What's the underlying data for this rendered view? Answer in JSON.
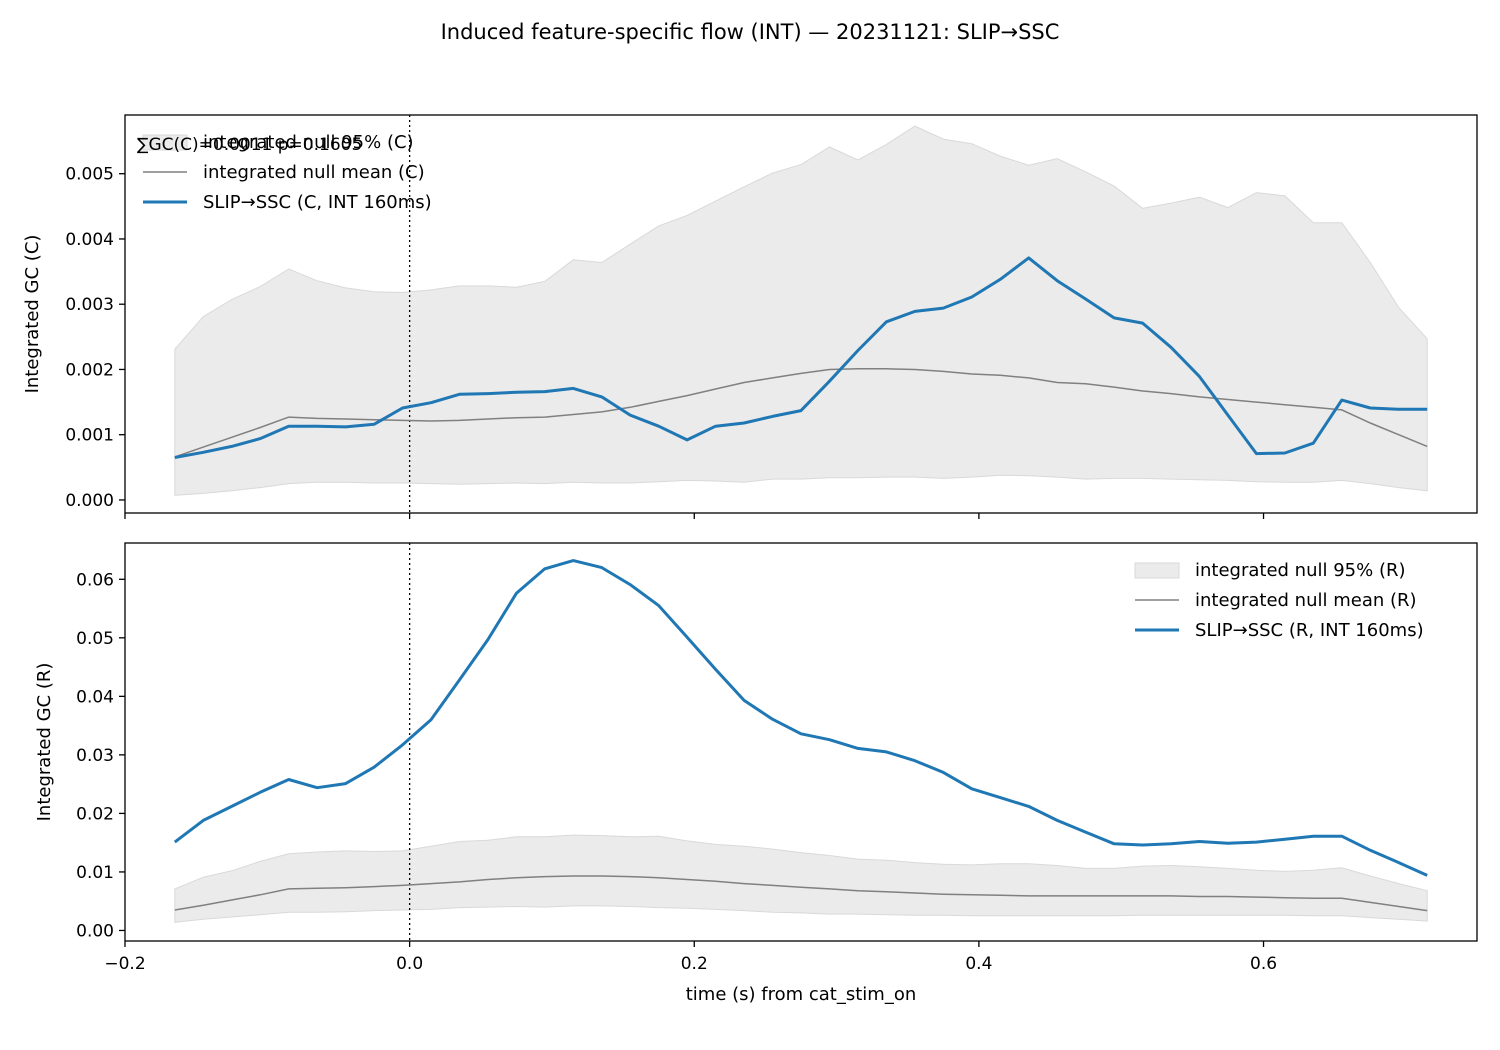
{
  "title": "Induced feature-specific flow (INT) — 20231121: SLIP→SSC",
  "colors": {
    "series": "#1f77b4",
    "null_mean": "#808080",
    "null_band": "#ebebeb",
    "null_band_edge": "#d9d9d9"
  },
  "chart_data": [
    {
      "type": "line",
      "panel": "top",
      "ylabel": "Integrated GC (C)",
      "xlim": [
        -0.2,
        0.75
      ],
      "ylim": [
        -0.0002,
        0.0059
      ],
      "xticks": [
        -0.2,
        0.0,
        0.2,
        0.4,
        0.6
      ],
      "yticks": [
        0.0,
        0.001,
        0.002,
        0.003,
        0.004,
        0.005
      ],
      "ytick_labels": [
        "0.000",
        "0.001",
        "0.002",
        "0.003",
        "0.004",
        "0.005"
      ],
      "vline_x": 0.0,
      "legend_position": "upper left",
      "annotation": "∑GC(C)=0.0011  p=0.1605",
      "x": [
        -0.165,
        -0.145,
        -0.125,
        -0.105,
        -0.085,
        -0.065,
        -0.045,
        -0.025,
        -0.005,
        0.015,
        0.035,
        0.055,
        0.075,
        0.095,
        0.115,
        0.135,
        0.155,
        0.175,
        0.195,
        0.215,
        0.235,
        0.255,
        0.275,
        0.295,
        0.315,
        0.335,
        0.355,
        0.375,
        0.395,
        0.415,
        0.435,
        0.455,
        0.475,
        0.495,
        0.515,
        0.535,
        0.555,
        0.575,
        0.595,
        0.615,
        0.635,
        0.655,
        0.675,
        0.695,
        0.715
      ],
      "series": [
        {
          "name": "SLIP→SSC (C, INT 160ms)",
          "values": [
            0.00065,
            0.00073,
            0.00082,
            0.00094,
            0.00113,
            0.00113,
            0.00112,
            0.00116,
            0.00141,
            0.00149,
            0.00162,
            0.00163,
            0.00165,
            0.00166,
            0.00171,
            0.00158,
            0.0013,
            0.00113,
            0.00092,
            0.00113,
            0.00118,
            0.00128,
            0.00137,
            0.00182,
            0.00229,
            0.00273,
            0.00289,
            0.00294,
            0.00311,
            0.00338,
            0.00371,
            0.00336,
            0.00308,
            0.00279,
            0.00271,
            0.00234,
            0.00189,
            0.0013,
            0.00071,
            0.00072,
            0.00087,
            0.00153,
            0.00141,
            0.00139,
            0.00139
          ]
        },
        {
          "name": "integrated null mean (C)",
          "values": [
            0.00066,
            0.00081,
            0.00096,
            0.00111,
            0.00127,
            0.00125,
            0.00124,
            0.00123,
            0.00122,
            0.00121,
            0.00122,
            0.00124,
            0.00126,
            0.00127,
            0.00131,
            0.00135,
            0.00142,
            0.00151,
            0.0016,
            0.0017,
            0.0018,
            0.00187,
            0.00194,
            0.002,
            0.00201,
            0.00201,
            0.002,
            0.00197,
            0.00193,
            0.00191,
            0.00187,
            0.0018,
            0.00178,
            0.00173,
            0.00167,
            0.00163,
            0.00158,
            0.00154,
            0.0015,
            0.00146,
            0.00142,
            0.00138,
            0.00118,
            0.001,
            0.00082
          ]
        }
      ],
      "band": {
        "name": "integrated null 95% (C)",
        "upper": [
          0.00231,
          0.00281,
          0.00307,
          0.00327,
          0.00354,
          0.00336,
          0.00325,
          0.00319,
          0.00318,
          0.00322,
          0.00328,
          0.00328,
          0.00326,
          0.00335,
          0.00368,
          0.00364,
          0.00392,
          0.0042,
          0.00436,
          0.00458,
          0.0048,
          0.00501,
          0.00514,
          0.00541,
          0.00521,
          0.00545,
          0.00573,
          0.00553,
          0.00546,
          0.00527,
          0.00513,
          0.00523,
          0.00503,
          0.00481,
          0.00447,
          0.00455,
          0.00464,
          0.00448,
          0.00471,
          0.00466,
          0.00425,
          0.00425,
          0.00364,
          0.00295,
          0.00247
        ],
        "lower": [
          7e-05,
          0.0001,
          0.00014,
          0.00019,
          0.00025,
          0.00027,
          0.00027,
          0.00026,
          0.00026,
          0.00025,
          0.00024,
          0.00025,
          0.00026,
          0.00025,
          0.00027,
          0.00026,
          0.00026,
          0.00028,
          0.0003,
          0.00029,
          0.00027,
          0.00032,
          0.00032,
          0.00034,
          0.00034,
          0.00035,
          0.00035,
          0.00033,
          0.00035,
          0.00038,
          0.00037,
          0.00035,
          0.00032,
          0.00033,
          0.00033,
          0.00032,
          0.00031,
          0.0003,
          0.00028,
          0.00027,
          0.00027,
          0.0003,
          0.00025,
          0.00019,
          0.00014
        ]
      }
    },
    {
      "type": "line",
      "panel": "bottom",
      "ylabel": "Integrated GC (R)",
      "xlabel": "time (s) from cat_stim_on",
      "xlim": [
        -0.2,
        0.75
      ],
      "ylim": [
        -0.0018,
        0.0662
      ],
      "xticks": [
        -0.2,
        0.0,
        0.2,
        0.4,
        0.6
      ],
      "xtick_labels": [
        "−0.2",
        "0.0",
        "0.2",
        "0.4",
        "0.6"
      ],
      "yticks": [
        0.0,
        0.01,
        0.02,
        0.03,
        0.04,
        0.05,
        0.06
      ],
      "ytick_labels": [
        "0.00",
        "0.01",
        "0.02",
        "0.03",
        "0.04",
        "0.05",
        "0.06"
      ],
      "vline_x": 0.0,
      "legend_position": "upper right",
      "x": [
        -0.165,
        -0.145,
        -0.125,
        -0.105,
        -0.085,
        -0.065,
        -0.045,
        -0.025,
        -0.005,
        0.015,
        0.035,
        0.055,
        0.075,
        0.095,
        0.115,
        0.135,
        0.155,
        0.175,
        0.195,
        0.215,
        0.235,
        0.255,
        0.275,
        0.295,
        0.315,
        0.335,
        0.355,
        0.375,
        0.395,
        0.415,
        0.435,
        0.455,
        0.475,
        0.495,
        0.515,
        0.535,
        0.555,
        0.575,
        0.595,
        0.615,
        0.635,
        0.655,
        0.675,
        0.695,
        0.715
      ],
      "series": [
        {
          "name": "SLIP→SSC (R, INT 160ms)",
          "values": [
            0.0151,
            0.0188,
            0.0212,
            0.0236,
            0.0258,
            0.0244,
            0.0251,
            0.0279,
            0.0317,
            0.036,
            0.0428,
            0.0497,
            0.0576,
            0.0618,
            0.0632,
            0.062,
            0.0591,
            0.0555,
            0.0501,
            0.0446,
            0.0393,
            0.0361,
            0.0336,
            0.0326,
            0.0311,
            0.0305,
            0.029,
            0.027,
            0.0242,
            0.0227,
            0.0212,
            0.0188,
            0.0168,
            0.0148,
            0.0146,
            0.0148,
            0.0152,
            0.0149,
            0.0151,
            0.0156,
            0.0161,
            0.0161,
            0.0137,
            0.0116,
            0.0094
          ]
        },
        {
          "name": "integrated null mean (R)",
          "values": [
            0.0035,
            0.0043,
            0.0052,
            0.0061,
            0.0071,
            0.0072,
            0.0073,
            0.0075,
            0.0077,
            0.008,
            0.0083,
            0.0087,
            0.009,
            0.0092,
            0.0093,
            0.0093,
            0.0092,
            0.009,
            0.0087,
            0.0084,
            0.008,
            0.0077,
            0.0074,
            0.0071,
            0.0068,
            0.0066,
            0.0064,
            0.0062,
            0.0061,
            0.006,
            0.0059,
            0.0059,
            0.0059,
            0.0059,
            0.0059,
            0.0059,
            0.0058,
            0.0058,
            0.0057,
            0.0056,
            0.0055,
            0.0055,
            0.0048,
            0.0041,
            0.0034
          ]
        }
      ],
      "band": {
        "name": "integrated null 95% (R)",
        "upper": [
          0.0071,
          0.0091,
          0.0102,
          0.0118,
          0.0131,
          0.0134,
          0.0136,
          0.0135,
          0.0136,
          0.0144,
          0.0152,
          0.0154,
          0.016,
          0.016,
          0.0163,
          0.0162,
          0.016,
          0.0161,
          0.0153,
          0.0147,
          0.0144,
          0.0139,
          0.0133,
          0.0128,
          0.0122,
          0.012,
          0.0116,
          0.0113,
          0.0112,
          0.0114,
          0.0114,
          0.0111,
          0.0106,
          0.0106,
          0.011,
          0.0111,
          0.0109,
          0.0106,
          0.0103,
          0.0101,
          0.0103,
          0.0107,
          0.0093,
          0.008,
          0.0068
        ],
        "lower": [
          0.0014,
          0.0019,
          0.0023,
          0.0027,
          0.0031,
          0.0031,
          0.0032,
          0.0034,
          0.0035,
          0.0036,
          0.0039,
          0.004,
          0.0041,
          0.004,
          0.0042,
          0.0042,
          0.0041,
          0.0039,
          0.0038,
          0.0036,
          0.0034,
          0.0031,
          0.003,
          0.0028,
          0.0028,
          0.0027,
          0.0026,
          0.0026,
          0.0025,
          0.0025,
          0.0025,
          0.0025,
          0.0025,
          0.0025,
          0.0026,
          0.0026,
          0.0026,
          0.0026,
          0.0026,
          0.0026,
          0.0025,
          0.0025,
          0.0022,
          0.0019,
          0.0016
        ]
      }
    }
  ]
}
